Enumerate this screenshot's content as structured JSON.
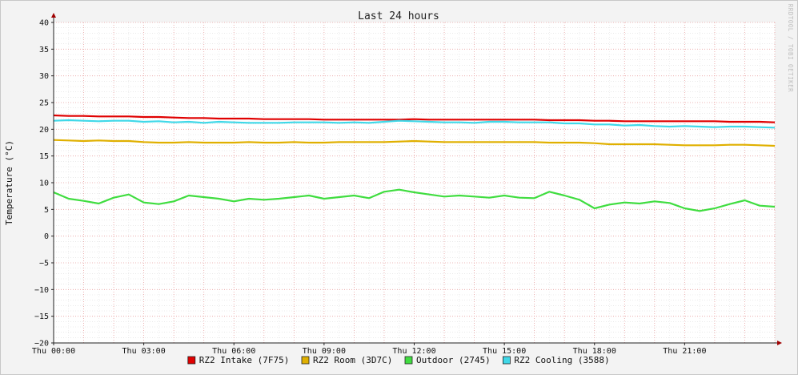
{
  "chart_data": {
    "type": "line",
    "title": "Last 24 hours",
    "ylabel": "Temperature (°C)",
    "watermark": "RRDTOOL / TOBI OETIKER",
    "ylim": [
      -20,
      40
    ],
    "y_ticks": [
      40,
      35,
      30,
      25,
      20,
      15,
      10,
      5,
      0,
      -5,
      -10,
      -15,
      -20
    ],
    "y_tick_labels": [
      "40",
      "35",
      "30",
      "25",
      "20",
      "15",
      "10",
      "5",
      "0",
      "−5",
      "−10",
      "−15",
      "−20"
    ],
    "x_range_hours": [
      0,
      24
    ],
    "x_ticks": [
      {
        "hour": 0,
        "label": "Thu 00:00"
      },
      {
        "hour": 3,
        "label": "Thu 03:00"
      },
      {
        "hour": 6,
        "label": "Thu 06:00"
      },
      {
        "hour": 9,
        "label": "Thu 09:00"
      },
      {
        "hour": 12,
        "label": "Thu 12:00"
      },
      {
        "hour": 15,
        "label": "Thu 15:00"
      },
      {
        "hour": 18,
        "label": "Thu 18:00"
      },
      {
        "hour": 21,
        "label": "Thu 21:00"
      }
    ],
    "grid": true,
    "legend_position": "bottom",
    "series": [
      {
        "name": "RZ2 Intake (7F75)",
        "color": "#e00000",
        "x": [
          0,
          0.5,
          1,
          1.5,
          2,
          2.5,
          3,
          3.5,
          4,
          4.5,
          5,
          5.5,
          6,
          6.5,
          7,
          7.5,
          8,
          8.5,
          9,
          9.5,
          10,
          10.5,
          11,
          11.5,
          12,
          12.5,
          13,
          13.5,
          14,
          14.5,
          15,
          15.5,
          16,
          16.5,
          17,
          17.5,
          18,
          18.5,
          19,
          19.5,
          20,
          20.5,
          21,
          21.5,
          22,
          22.5,
          23,
          23.5,
          24
        ],
        "y": [
          22.6,
          22.5,
          22.5,
          22.4,
          22.4,
          22.4,
          22.3,
          22.3,
          22.2,
          22.1,
          22.1,
          22.0,
          22.0,
          22.0,
          21.9,
          21.9,
          21.9,
          21.9,
          21.8,
          21.8,
          21.8,
          21.8,
          21.8,
          21.8,
          21.9,
          21.8,
          21.8,
          21.8,
          21.8,
          21.8,
          21.8,
          21.8,
          21.8,
          21.7,
          21.7,
          21.7,
          21.6,
          21.6,
          21.5,
          21.5,
          21.5,
          21.5,
          21.5,
          21.5,
          21.5,
          21.4,
          21.4,
          21.4,
          21.3
        ]
      },
      {
        "name": "RZ2 Room (3D7C)",
        "color": "#e0b000",
        "x": [
          0,
          0.5,
          1,
          1.5,
          2,
          2.5,
          3,
          3.5,
          4,
          4.5,
          5,
          5.5,
          6,
          6.5,
          7,
          7.5,
          8,
          8.5,
          9,
          9.5,
          10,
          10.5,
          11,
          11.5,
          12,
          12.5,
          13,
          13.5,
          14,
          14.5,
          15,
          15.5,
          16,
          16.5,
          17,
          17.5,
          18,
          18.5,
          19,
          19.5,
          20,
          20.5,
          21,
          21.5,
          22,
          22.5,
          23,
          23.5,
          24
        ],
        "y": [
          18.0,
          17.9,
          17.8,
          17.9,
          17.8,
          17.8,
          17.6,
          17.5,
          17.5,
          17.6,
          17.5,
          17.5,
          17.5,
          17.6,
          17.5,
          17.5,
          17.6,
          17.5,
          17.5,
          17.6,
          17.6,
          17.6,
          17.6,
          17.7,
          17.8,
          17.7,
          17.6,
          17.6,
          17.6,
          17.6,
          17.6,
          17.6,
          17.6,
          17.5,
          17.5,
          17.5,
          17.4,
          17.2,
          17.2,
          17.2,
          17.2,
          17.1,
          17.0,
          17.0,
          17.0,
          17.1,
          17.1,
          17.0,
          16.9
        ]
      },
      {
        "name": "Outdoor (2745)",
        "color": "#40dd40",
        "x": [
          0,
          0.5,
          1,
          1.5,
          2,
          2.5,
          3,
          3.5,
          4,
          4.5,
          5,
          5.5,
          6,
          6.5,
          7,
          7.5,
          8,
          8.5,
          9,
          9.5,
          10,
          10.5,
          11,
          11.5,
          12,
          12.5,
          13,
          13.5,
          14,
          14.5,
          15,
          15.5,
          16,
          16.5,
          17,
          17.5,
          18,
          18.5,
          19,
          19.5,
          20,
          20.5,
          21,
          21.5,
          22,
          22.5,
          23,
          23.5,
          24
        ],
        "y": [
          8.2,
          7.0,
          6.6,
          6.1,
          7.2,
          7.8,
          6.3,
          6.0,
          6.5,
          7.6,
          7.3,
          7.0,
          6.5,
          7.0,
          6.8,
          7.0,
          7.3,
          7.6,
          7.0,
          7.3,
          7.6,
          7.1,
          8.3,
          8.7,
          8.2,
          7.8,
          7.4,
          7.6,
          7.4,
          7.2,
          7.6,
          7.2,
          7.1,
          8.3,
          7.6,
          6.8,
          5.2,
          5.9,
          6.3,
          6.1,
          6.5,
          6.2,
          5.2,
          4.7,
          5.2,
          6.0,
          6.7,
          5.7,
          5.5
        ]
      },
      {
        "name": "RZ2 Cooling (3588)",
        "color": "#40d8e8",
        "x": [
          0,
          0.5,
          1,
          1.5,
          2,
          2.5,
          3,
          3.5,
          4,
          4.5,
          5,
          5.5,
          6,
          6.5,
          7,
          7.5,
          8,
          8.5,
          9,
          9.5,
          10,
          10.5,
          11,
          11.5,
          12,
          12.5,
          13,
          13.5,
          14,
          14.5,
          15,
          15.5,
          16,
          16.5,
          17,
          17.5,
          18,
          18.5,
          19,
          19.5,
          20,
          20.5,
          21,
          21.5,
          22,
          22.5,
          23,
          23.5,
          24
        ],
        "y": [
          21.6,
          21.7,
          21.6,
          21.5,
          21.6,
          21.6,
          21.4,
          21.5,
          21.3,
          21.4,
          21.2,
          21.4,
          21.3,
          21.2,
          21.2,
          21.2,
          21.3,
          21.3,
          21.3,
          21.2,
          21.3,
          21.2,
          21.4,
          21.6,
          21.5,
          21.4,
          21.3,
          21.3,
          21.2,
          21.4,
          21.4,
          21.3,
          21.3,
          21.3,
          21.1,
          21.1,
          20.9,
          20.9,
          20.7,
          20.8,
          20.6,
          20.5,
          20.6,
          20.5,
          20.4,
          20.5,
          20.5,
          20.4,
          20.3
        ]
      }
    ]
  }
}
